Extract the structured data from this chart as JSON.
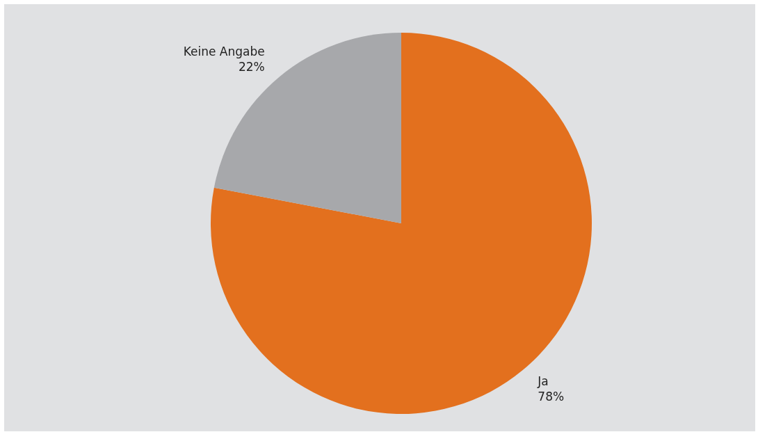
{
  "chart_data": {
    "type": "pie",
    "categories": [
      "Ja",
      "Keine Angabe"
    ],
    "values": [
      78,
      22
    ],
    "value_labels": [
      "78%",
      "22%"
    ],
    "colors": [
      "#e3701e",
      "#a7a8ab"
    ]
  }
}
